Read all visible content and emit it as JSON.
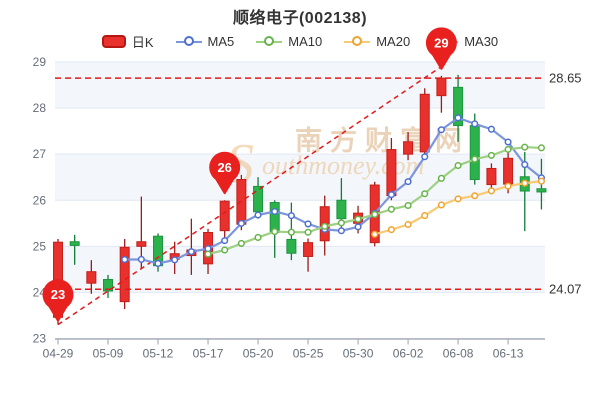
{
  "title": "顺络电子(002138)",
  "legend": [
    {
      "label": "日K",
      "type": "candle",
      "color": "#e8302c",
      "border": "#b61712",
      "icon": "candlestick-swatch-icon"
    },
    {
      "label": "MA5",
      "type": "ma",
      "color": "#7b96dd",
      "ring": "#4f6fd0",
      "icon": "ma5-line-icon"
    },
    {
      "label": "MA10",
      "type": "ma",
      "color": "#9ed083",
      "ring": "#67b34b",
      "icon": "ma10-line-icon"
    },
    {
      "label": "MA20",
      "type": "ma",
      "color": "#f8ca73",
      "ring": "#f0a32f",
      "icon": "ma20-line-icon"
    },
    {
      "label": "MA30",
      "type": "ma",
      "color": "#f59696",
      "ring": "#ec6a66",
      "icon": "ma30-line-icon"
    }
  ],
  "watermark": {
    "cn": "南方财富网",
    "en_initial": "S",
    "en_rest": "outhmoney.com"
  },
  "y_axis": {
    "ticks": [
      29,
      28,
      27,
      26,
      25,
      24,
      23
    ]
  },
  "x_axis": {
    "label_every": 3,
    "labels": [
      "04-29",
      "05-09",
      "05-12",
      "05-17",
      "05-20",
      "05-25",
      "05-30",
      "06-02",
      "06-08",
      "06-13"
    ]
  },
  "annotations": {
    "hlines": [
      {
        "value": 28.65,
        "label": "28.65"
      },
      {
        "value": 24.07,
        "label": "24.07"
      }
    ],
    "balloons": [
      {
        "label": "23",
        "candle": 1,
        "anchor": "low"
      },
      {
        "label": "26",
        "candle": 11,
        "anchor": "high"
      },
      {
        "label": "29",
        "candle": 24,
        "anchor": "high"
      }
    ],
    "trend_line": {
      "x1_candle": 1,
      "y1_value": 23.3,
      "x2_candle": 24,
      "y2_value": 28.9
    },
    "color": "#e11a1a",
    "balloon_color": "#e8211f"
  },
  "chart_data": {
    "type": "candlestick",
    "title": "顺络电子(002138)",
    "ylim": [
      23,
      29
    ],
    "grid": true,
    "legend_position": "top",
    "ohlc_format": [
      "date",
      "open",
      "high",
      "low",
      "close"
    ],
    "candles": [
      [
        "04-29",
        23.46,
        25.16,
        23.3,
        25.09
      ],
      [
        "05-05",
        25.1,
        25.25,
        24.6,
        25.02
      ],
      [
        "05-06",
        24.2,
        24.7,
        23.97,
        24.45
      ],
      [
        "05-09",
        24.28,
        24.38,
        23.88,
        24.03
      ],
      [
        "05-10",
        23.8,
        25.16,
        23.64,
        24.98
      ],
      [
        "05-11",
        25.0,
        26.08,
        24.5,
        25.1
      ],
      [
        "05-12",
        25.22,
        25.28,
        24.45,
        24.58
      ],
      [
        "05-13",
        24.72,
        25.1,
        24.4,
        24.84
      ],
      [
        "05-16",
        24.8,
        25.6,
        24.38,
        24.92
      ],
      [
        "05-17",
        24.62,
        25.38,
        24.4,
        25.3
      ],
      [
        "05-18",
        25.34,
        26.0,
        25.16,
        25.98
      ],
      [
        "05-19",
        25.48,
        26.55,
        25.35,
        26.45
      ],
      [
        "05-20",
        26.3,
        26.5,
        25.6,
        25.75
      ],
      [
        "05-23",
        25.95,
        26.0,
        24.75,
        25.3
      ],
      [
        "05-24",
        25.15,
        25.95,
        24.7,
        24.85
      ],
      [
        "05-25",
        24.78,
        25.17,
        24.45,
        25.08
      ],
      [
        "05-26",
        25.12,
        26.1,
        24.8,
        25.86
      ],
      [
        "05-27",
        26.0,
        26.48,
        25.4,
        25.6
      ],
      [
        "05-30",
        25.5,
        25.88,
        25.28,
        25.72
      ],
      [
        "05-31",
        25.08,
        26.4,
        25.0,
        26.33
      ],
      [
        "06-01",
        26.1,
        27.35,
        26.0,
        27.1
      ],
      [
        "06-02",
        27.0,
        27.48,
        26.87,
        27.27
      ],
      [
        "06-06",
        27.05,
        28.43,
        26.91,
        28.3
      ],
      [
        "06-07",
        28.27,
        28.7,
        27.9,
        28.65
      ],
      [
        "06-08",
        28.45,
        28.72,
        27.27,
        27.62
      ],
      [
        "06-09",
        27.62,
        27.88,
        26.34,
        26.45
      ],
      [
        "06-10",
        26.34,
        26.8,
        26.15,
        26.69
      ],
      [
        "06-13",
        26.35,
        27.09,
        26.15,
        26.91
      ],
      [
        "06-14",
        26.51,
        27.05,
        25.33,
        26.2
      ],
      [
        "06-15",
        26.25,
        26.9,
        25.8,
        26.18
      ]
    ],
    "moving_averages": [
      {
        "name": "MA5",
        "period": 5,
        "color": "#7b96dd",
        "ring": "#4f6fd0"
      },
      {
        "name": "MA10",
        "period": 10,
        "color": "#9ed083",
        "ring": "#67b34b"
      },
      {
        "name": "MA20",
        "period": 20,
        "color": "#f8ca73",
        "ring": "#f0a32f"
      },
      {
        "name": "MA30",
        "period": 30,
        "color": "#f59696",
        "ring": "#ec6a66"
      }
    ],
    "colors": {
      "up": "#e8302c",
      "up_border": "#c2201c",
      "up_wick": "#9c1b17",
      "down": "#2bb24a",
      "down_border": "#1d9440",
      "down_wick": "#157a37",
      "band": "#f3f6fb",
      "grid": "#e2e9f4",
      "axis": "#9aa2ae"
    }
  }
}
